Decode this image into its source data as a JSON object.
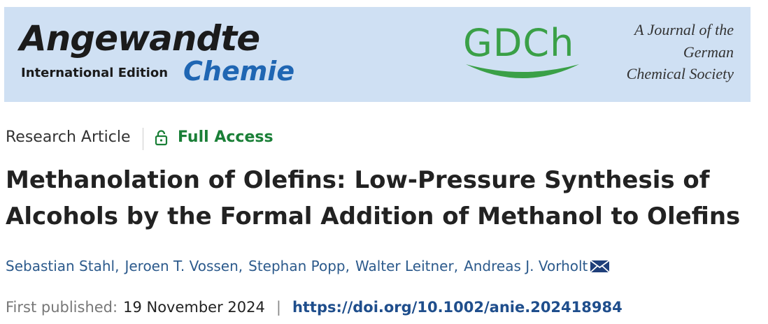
{
  "banner": {
    "journal": "Angewandte",
    "edition": "International Edition",
    "subtitle": "Chemie",
    "society_logo": "GDCh",
    "tagline": [
      "A Journal of the",
      "German",
      "Chemical Society"
    ]
  },
  "article": {
    "type": "Research Article",
    "access": "Full Access",
    "title_lines": [
      "Methanolation of Olefins: Low-Pressure Synthesis of",
      "Alcohols by the Formal Addition of Methanol to Olefins"
    ],
    "authors": [
      "Sebastian Stahl",
      "Jeroen T. Vossen",
      "Stephan Popp",
      "Walter Leitner",
      "Andreas J. Vorholt"
    ],
    "author_separator": ",",
    "published_label": "First published:",
    "published_date": "19 November 2024",
    "divider": "|",
    "doi": "https://doi.org/10.1002/anie.202418984"
  }
}
